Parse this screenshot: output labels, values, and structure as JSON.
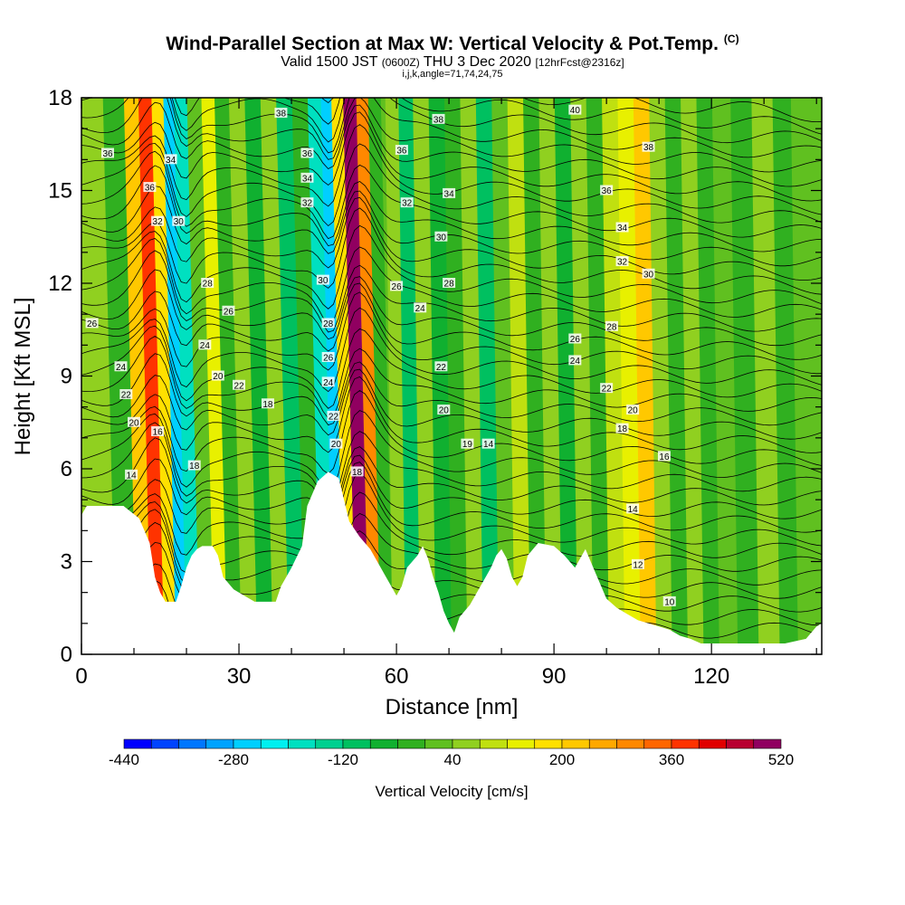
{
  "header": {
    "title": "Wind-Parallel Section at Max W: Vertical Velocity & Pot.Temp.",
    "copyright_mark": "(C)",
    "valid_prefix": "Valid 1500 JST",
    "valid_zulu": "(0600Z)",
    "valid_date": "THU 3 Dec 2020",
    "forecast_info": "[12hrFcst@2316z]",
    "indices": "i,j,k,angle=71,74,24,75"
  },
  "chart_data": {
    "type": "heatmap",
    "xlabel": "Distance [nm]",
    "ylabel": "Height [Kft MSL]",
    "xlim": [
      0,
      141
    ],
    "ylim": [
      0,
      18
    ],
    "x_ticks": [
      0,
      30,
      60,
      90,
      120
    ],
    "x_tick_labels": [
      "0",
      "30",
      "60",
      "90",
      "120"
    ],
    "y_ticks": [
      0,
      3,
      6,
      9,
      12,
      15,
      18
    ],
    "y_tick_labels": [
      "0",
      "3",
      "6",
      "9",
      "12",
      "15",
      "18"
    ],
    "colorbar": {
      "title": "Vertical Velocity [cm/s]",
      "min": -440,
      "max": 520,
      "step": 40,
      "labels": [
        "-440",
        "-280",
        "-120",
        "40",
        "200",
        "360",
        "520"
      ],
      "colors": [
        "#0000ff",
        "#0044ff",
        "#0077ff",
        "#00a3ff",
        "#00cfff",
        "#00f0f0",
        "#00e0c0",
        "#00d090",
        "#00c060",
        "#10b030",
        "#30b020",
        "#60c020",
        "#90d020",
        "#c0e010",
        "#e8f000",
        "#ffe000",
        "#ffc800",
        "#ffa800",
        "#ff8800",
        "#ff6600",
        "#ff3300",
        "#e00000",
        "#b80030",
        "#900060",
        "#700080"
      ]
    },
    "vertical_velocity_bands": [
      {
        "x": 4,
        "value": 40
      },
      {
        "x": 9,
        "value": -40
      },
      {
        "x": 12,
        "value": 200
      },
      {
        "x": 14.5,
        "value": 360
      },
      {
        "x": 17,
        "value": 160
      },
      {
        "x": 19,
        "value": -280
      },
      {
        "x": 21,
        "value": -200
      },
      {
        "x": 24,
        "value": 0
      },
      {
        "x": 26.5,
        "value": 120
      },
      {
        "x": 29,
        "value": -40
      },
      {
        "x": 32,
        "value": 60
      },
      {
        "x": 35,
        "value": -80
      },
      {
        "x": 38,
        "value": 40
      },
      {
        "x": 41,
        "value": -120
      },
      {
        "x": 44,
        "value": -40
      },
      {
        "x": 47,
        "value": -200
      },
      {
        "x": 49,
        "value": -280
      },
      {
        "x": 51,
        "value": 160
      },
      {
        "x": 53.5,
        "value": 480
      },
      {
        "x": 56,
        "value": 280
      },
      {
        "x": 58,
        "value": -40
      },
      {
        "x": 60.5,
        "value": 40
      },
      {
        "x": 63,
        "value": -120
      },
      {
        "x": 66,
        "value": 40
      },
      {
        "x": 69,
        "value": -80
      },
      {
        "x": 72,
        "value": -40
      },
      {
        "x": 75,
        "value": 40
      },
      {
        "x": 78,
        "value": -120
      },
      {
        "x": 81,
        "value": 0
      },
      {
        "x": 84,
        "value": 80
      },
      {
        "x": 87,
        "value": -40
      },
      {
        "x": 90,
        "value": 40
      },
      {
        "x": 93,
        "value": -80
      },
      {
        "x": 96,
        "value": 40
      },
      {
        "x": 99,
        "value": -40
      },
      {
        "x": 102,
        "value": 80
      },
      {
        "x": 105,
        "value": 120
      },
      {
        "x": 108,
        "value": 200
      },
      {
        "x": 111,
        "value": 40
      },
      {
        "x": 114,
        "value": -40
      },
      {
        "x": 117,
        "value": 40
      },
      {
        "x": 120,
        "value": -40
      },
      {
        "x": 123,
        "value": 20
      },
      {
        "x": 127,
        "value": -40
      },
      {
        "x": 131,
        "value": 40
      },
      {
        "x": 135,
        "value": -20
      },
      {
        "x": 138,
        "value": 20
      },
      {
        "x": 141,
        "value": 0
      }
    ],
    "terrain": [
      [
        0,
        4.5
      ],
      [
        1,
        4.8
      ],
      [
        5,
        4.8
      ],
      [
        8,
        4.8
      ],
      [
        11,
        4.4
      ],
      [
        13,
        3.6
      ],
      [
        14,
        2.5
      ],
      [
        15,
        2
      ],
      [
        16,
        1.7
      ],
      [
        18,
        1.7
      ],
      [
        19,
        2.2
      ],
      [
        20,
        2.8
      ],
      [
        21,
        3.2
      ],
      [
        22,
        3.4
      ],
      [
        23,
        3.5
      ],
      [
        25,
        3.5
      ],
      [
        26,
        3.2
      ],
      [
        27,
        2.5
      ],
      [
        29,
        2.1
      ],
      [
        31,
        1.9
      ],
      [
        33,
        1.7
      ],
      [
        37,
        1.7
      ],
      [
        38,
        2.2
      ],
      [
        40,
        2.8
      ],
      [
        42,
        3.5
      ],
      [
        43,
        4.8
      ],
      [
        45,
        5.6
      ],
      [
        47,
        5.9
      ],
      [
        49,
        5.7
      ],
      [
        50,
        5
      ],
      [
        51,
        4.3
      ],
      [
        53,
        3.8
      ],
      [
        55,
        3.4
      ],
      [
        57,
        2.8
      ],
      [
        59,
        2.2
      ],
      [
        60,
        1.9
      ],
      [
        61,
        2.2
      ],
      [
        62,
        2.8
      ],
      [
        64,
        3.2
      ],
      [
        65,
        3.5
      ],
      [
        66,
        3.1
      ],
      [
        67,
        2.5
      ],
      [
        68,
        2
      ],
      [
        69,
        1.4
      ],
      [
        70,
        1
      ],
      [
        71,
        0.7
      ],
      [
        72,
        1.2
      ],
      [
        74,
        1.6
      ],
      [
        76,
        2.2
      ],
      [
        78,
        2.8
      ],
      [
        79,
        3.2
      ],
      [
        80,
        3.4
      ],
      [
        81,
        3.1
      ],
      [
        82,
        2.5
      ],
      [
        83,
        2.2
      ],
      [
        84,
        2.5
      ],
      [
        85,
        3.2
      ],
      [
        87,
        3.6
      ],
      [
        90,
        3.5
      ],
      [
        92,
        3.2
      ],
      [
        94,
        2.8
      ],
      [
        96,
        3.4
      ],
      [
        98,
        2.6
      ],
      [
        100,
        1.8
      ],
      [
        102,
        1.5
      ],
      [
        104,
        1.3
      ],
      [
        106,
        1.1
      ],
      [
        108,
        1.0
      ],
      [
        110,
        0.9
      ],
      [
        112,
        0.8
      ],
      [
        114,
        0.6
      ],
      [
        116,
        0.5
      ],
      [
        118,
        0.35
      ],
      [
        122,
        0.35
      ],
      [
        126,
        0.35
      ],
      [
        130,
        0.35
      ],
      [
        134,
        0.35
      ],
      [
        138,
        0.5
      ],
      [
        140,
        0.9
      ],
      [
        141,
        1.0
      ]
    ],
    "potential_temperature_labels": [
      {
        "text": "36",
        "x": 5,
        "y": 16.2
      },
      {
        "text": "34",
        "x": 17,
        "y": 16.0
      },
      {
        "text": "36",
        "x": 13,
        "y": 15.1
      },
      {
        "text": "32",
        "x": 14.5,
        "y": 14.0
      },
      {
        "text": "30",
        "x": 18.5,
        "y": 14.0
      },
      {
        "text": "38",
        "x": 38,
        "y": 17.5
      },
      {
        "text": "36",
        "x": 43,
        "y": 16.2
      },
      {
        "text": "34",
        "x": 43,
        "y": 15.4
      },
      {
        "text": "32",
        "x": 43,
        "y": 14.6
      },
      {
        "text": "40",
        "x": 94,
        "y": 17.6
      },
      {
        "text": "38",
        "x": 68,
        "y": 17.3
      },
      {
        "text": "36",
        "x": 61,
        "y": 16.3
      },
      {
        "text": "38",
        "x": 108,
        "y": 16.4
      },
      {
        "text": "34",
        "x": 70,
        "y": 14.9
      },
      {
        "text": "32",
        "x": 62,
        "y": 14.6
      },
      {
        "text": "36",
        "x": 100,
        "y": 15.0
      },
      {
        "text": "30",
        "x": 68.5,
        "y": 13.5
      },
      {
        "text": "34",
        "x": 103,
        "y": 13.8
      },
      {
        "text": "32",
        "x": 103,
        "y": 12.7
      },
      {
        "text": "30",
        "x": 108,
        "y": 12.3
      },
      {
        "text": "28",
        "x": 70,
        "y": 12.0
      },
      {
        "text": "30",
        "x": 46,
        "y": 12.1
      },
      {
        "text": "26",
        "x": 60,
        "y": 11.9
      },
      {
        "text": "28",
        "x": 24,
        "y": 12.0
      },
      {
        "text": "26",
        "x": 28,
        "y": 11.1
      },
      {
        "text": "26",
        "x": 2,
        "y": 10.7
      },
      {
        "text": "24",
        "x": 64.5,
        "y": 11.2
      },
      {
        "text": "28",
        "x": 47,
        "y": 10.7
      },
      {
        "text": "28",
        "x": 101,
        "y": 10.6
      },
      {
        "text": "26",
        "x": 94,
        "y": 10.2
      },
      {
        "text": "24",
        "x": 23.5,
        "y": 10.0
      },
      {
        "text": "26",
        "x": 47,
        "y": 9.6
      },
      {
        "text": "24",
        "x": 94,
        "y": 9.5
      },
      {
        "text": "24",
        "x": 7.5,
        "y": 9.3
      },
      {
        "text": "22",
        "x": 68.5,
        "y": 9.3
      },
      {
        "text": "20",
        "x": 26,
        "y": 9.0
      },
      {
        "text": "24",
        "x": 47,
        "y": 8.8
      },
      {
        "text": "22",
        "x": 30,
        "y": 8.7
      },
      {
        "text": "22",
        "x": 100,
        "y": 8.6
      },
      {
        "text": "22",
        "x": 8.5,
        "y": 8.4
      },
      {
        "text": "18",
        "x": 35.5,
        "y": 8.1
      },
      {
        "text": "20",
        "x": 69,
        "y": 7.9
      },
      {
        "text": "20",
        "x": 105,
        "y": 7.9
      },
      {
        "text": "22",
        "x": 48,
        "y": 7.7
      },
      {
        "text": "20",
        "x": 10,
        "y": 7.5
      },
      {
        "text": "18",
        "x": 103,
        "y": 7.3
      },
      {
        "text": "16",
        "x": 14.5,
        "y": 7.2
      },
      {
        "text": "19",
        "x": 73.5,
        "y": 6.8
      },
      {
        "text": "14",
        "x": 77.5,
        "y": 6.8
      },
      {
        "text": "20",
        "x": 48.5,
        "y": 6.8
      },
      {
        "text": "16",
        "x": 111,
        "y": 6.4
      },
      {
        "text": "18",
        "x": 21.5,
        "y": 6.1
      },
      {
        "text": "14",
        "x": 9.5,
        "y": 5.8
      },
      {
        "text": "18",
        "x": 52.5,
        "y": 5.9
      },
      {
        "text": "14",
        "x": 105,
        "y": 4.7
      },
      {
        "text": "12",
        "x": 106,
        "y": 2.9
      },
      {
        "text": "10",
        "x": 112,
        "y": 1.7
      }
    ]
  }
}
